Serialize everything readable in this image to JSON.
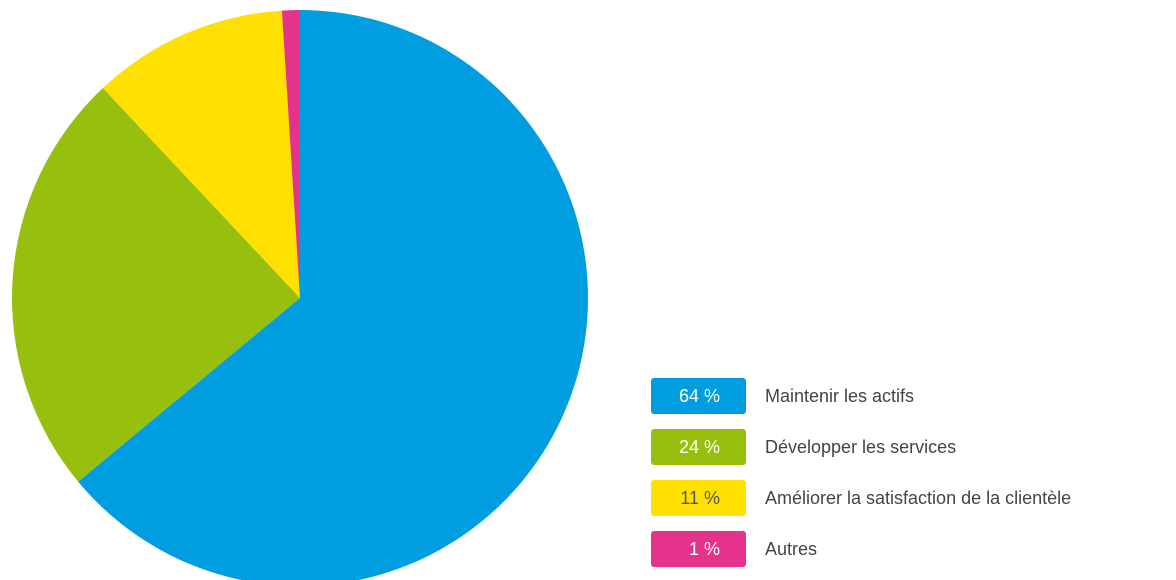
{
  "chart_data": {
    "type": "pie",
    "categories": [
      "Maintenir les actifs",
      "Développer les services",
      "Améliorer la satisfaction de la clientèle",
      "Autres"
    ],
    "values": [
      64,
      24,
      11,
      1
    ],
    "value_labels": [
      "64 %",
      "24 %",
      "11 %",
      "1 %"
    ],
    "colors": [
      "#009ee0",
      "#97bf0d",
      "#ffe000",
      "#e5338b"
    ],
    "legend": "bottom-right"
  }
}
